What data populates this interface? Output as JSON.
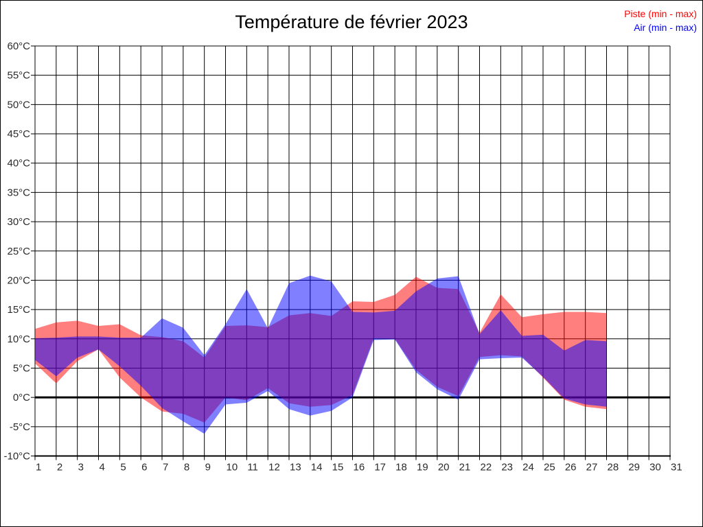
{
  "page": {
    "title": "Température de février 2023"
  },
  "legend": {
    "items": [
      {
        "label": "Piste (min - max)",
        "color": "#ff0000"
      },
      {
        "label": "Air (min - max)",
        "color": "#0000ff"
      }
    ]
  },
  "chart_data": {
    "type": "area",
    "title": "Température de février 2023",
    "xlabel": "",
    "ylabel": "",
    "x_range": [
      1,
      31
    ],
    "x_ticks": [
      1,
      2,
      3,
      4,
      5,
      6,
      7,
      8,
      9,
      10,
      11,
      12,
      13,
      14,
      15,
      16,
      17,
      18,
      19,
      20,
      21,
      22,
      23,
      24,
      25,
      26,
      27,
      28,
      29,
      30,
      31
    ],
    "y_range": [
      -10,
      60
    ],
    "y_tick_step": 5,
    "y_ticks": [
      60,
      55,
      50,
      45,
      40,
      35,
      30,
      25,
      20,
      15,
      10,
      5,
      0,
      -5,
      -10
    ],
    "y_unit": "°C",
    "grid": true,
    "zero_line_bold": true,
    "legend_position": "top-right",
    "days": [
      1,
      2,
      3,
      4,
      5,
      6,
      7,
      8,
      9,
      10,
      11,
      12,
      13,
      14,
      15,
      16,
      17,
      18,
      19,
      20,
      21,
      22,
      23,
      24,
      25,
      26,
      27,
      28
    ],
    "series": [
      {
        "name": "Piste (min - max)",
        "id": "piste-band",
        "color": "#ff0000",
        "opacity": 0.5,
        "min": [
          5.8,
          2.4,
          6.2,
          8.2,
          3.4,
          0.0,
          -2.4,
          -2.8,
          -4.3,
          0.0,
          -0.5,
          1.6,
          -1.0,
          -1.6,
          -1.3,
          0.4,
          10.1,
          10.0,
          4.7,
          1.8,
          0.2,
          6.9,
          7.2,
          7.0,
          3.4,
          -0.4,
          -1.6,
          -2.0
        ],
        "max": [
          11.7,
          12.8,
          13.1,
          12.2,
          12.5,
          10.6,
          10.3,
          9.6,
          6.8,
          12.2,
          12.3,
          12.0,
          14.0,
          14.4,
          13.9,
          16.4,
          16.3,
          17.5,
          20.6,
          18.7,
          18.5,
          11.0,
          17.6,
          13.7,
          14.2,
          14.6,
          14.6,
          14.4
        ]
      },
      {
        "name": "Air (min - max)",
        "id": "air-band",
        "color": "#0000ff",
        "opacity": 0.5,
        "min": [
          6.4,
          3.6,
          6.8,
          8.2,
          5.3,
          2.0,
          -1.8,
          -4.1,
          -6.2,
          -1.2,
          -0.9,
          1.1,
          -2.0,
          -3.1,
          -2.3,
          0.0,
          9.8,
          9.9,
          4.3,
          1.4,
          -0.4,
          6.5,
          6.7,
          6.8,
          3.5,
          -0.2,
          -1.2,
          -1.6
        ],
        "max": [
          10.1,
          10.2,
          10.4,
          10.4,
          10.2,
          10.2,
          13.5,
          11.9,
          7.2,
          12.5,
          18.5,
          11.8,
          19.5,
          20.8,
          19.8,
          14.6,
          14.5,
          14.8,
          18.1,
          20.3,
          20.7,
          10.8,
          14.9,
          10.5,
          10.7,
          8.0,
          9.8,
          9.6
        ]
      }
    ]
  }
}
